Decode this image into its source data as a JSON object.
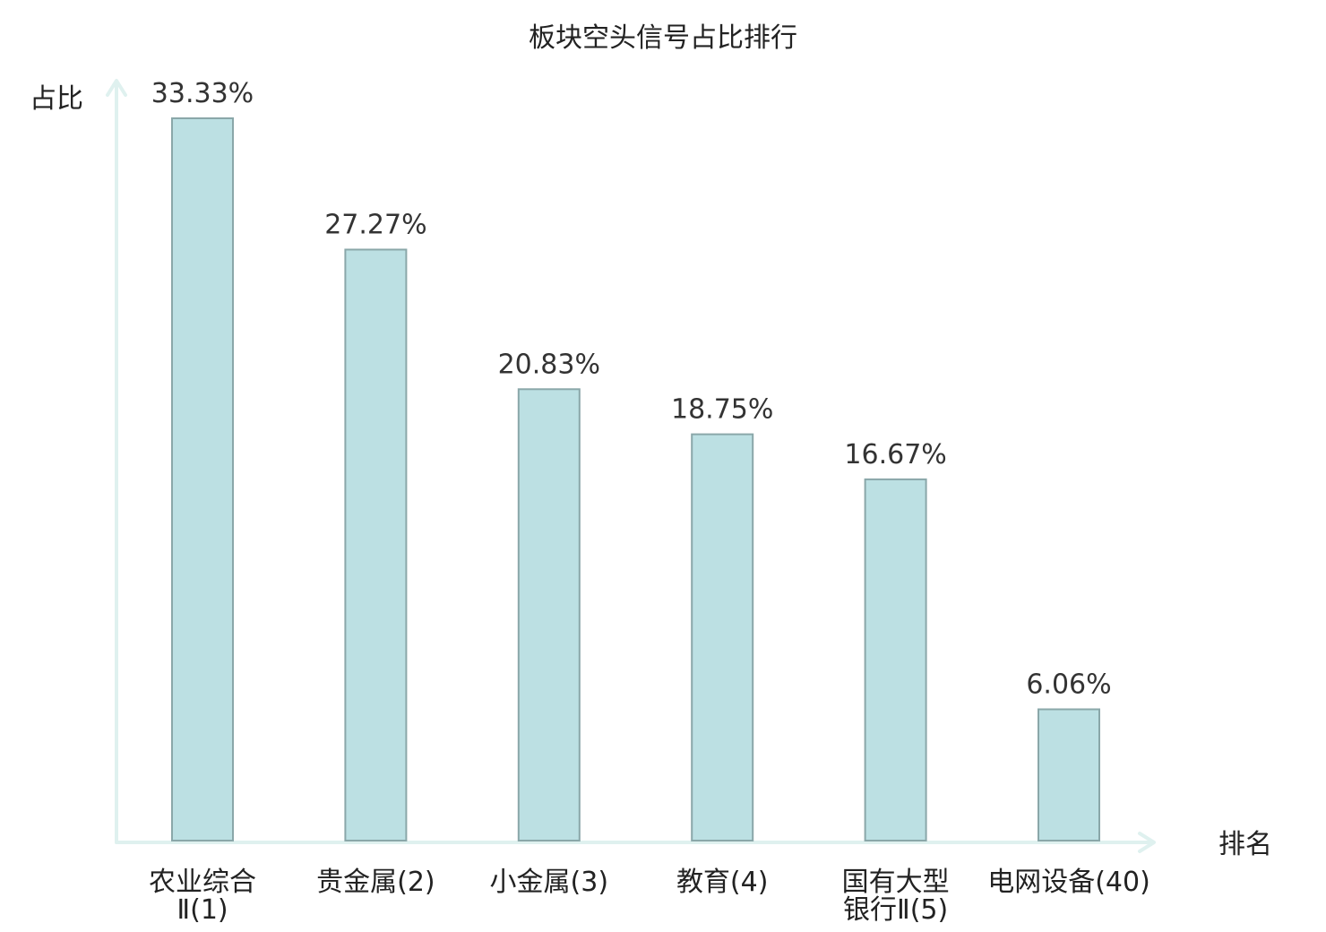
{
  "chart_data": {
    "type": "bar",
    "title": "板块空头信号占比排行",
    "ylabel": "占比",
    "xlabel": "排名",
    "ylim": [
      0,
      35
    ],
    "grid": false,
    "categories": [
      [
        "农业综合",
        "Ⅱ(1)"
      ],
      [
        "贵金属(2)"
      ],
      [
        "小金属(3)"
      ],
      [
        "教育(4)"
      ],
      [
        "国有大型",
        "银行Ⅱ(5)"
      ],
      [
        "电网设备(40)"
      ]
    ],
    "values": [
      33.33,
      27.27,
      20.83,
      18.75,
      16.67,
      6.06
    ],
    "value_labels": [
      "33.33%",
      "27.27%",
      "20.83%",
      "18.75%",
      "16.67%",
      "6.06%"
    ],
    "highlight_index": 5
  },
  "colors": {
    "bar_fill": "#bce0e3",
    "bar_stroke": "#8aa7a9",
    "axis": "#dff1ef",
    "text": "#222222",
    "value_text": "#333333",
    "highlight_text": "#e0141b"
  }
}
